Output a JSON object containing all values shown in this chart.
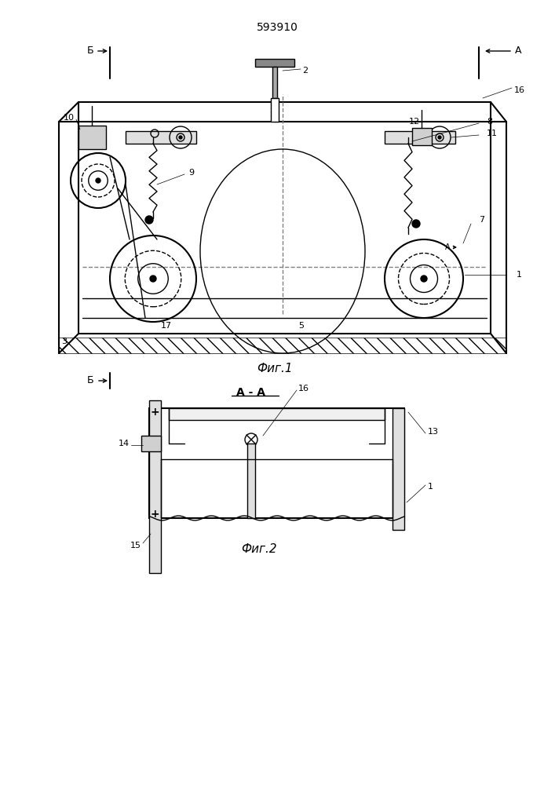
{
  "patent_number": "593910",
  "fig1_label": "Фиг.1",
  "fig2_label": "Фиг.2",
  "section_label": "А - А",
  "bg_color": "#ffffff",
  "line_color": "#000000",
  "line_width": 1.0,
  "thin_line": 0.5,
  "thick_line": 1.5
}
